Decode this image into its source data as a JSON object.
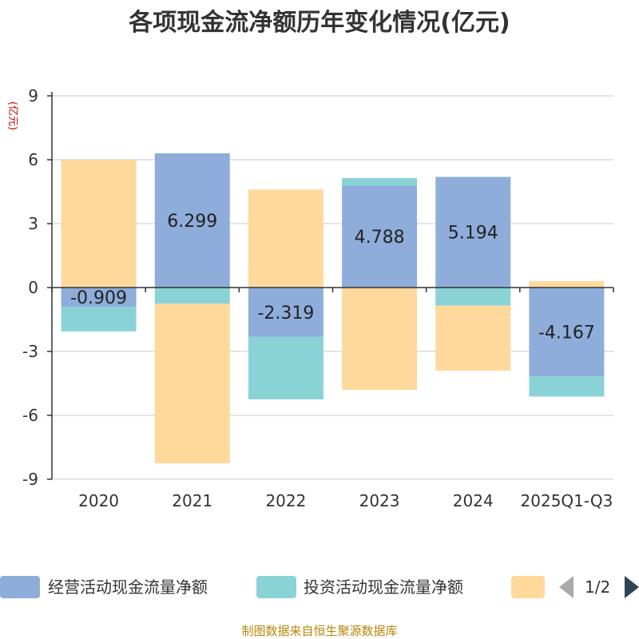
{
  "chart_data": {
    "type": "bar",
    "stacked": true,
    "title": "各项现金流净额历年变化情况(亿元)",
    "ylabel": "(亿元)",
    "xlabel": "",
    "categories": [
      "2020",
      "2021",
      "2022",
      "2023",
      "2024",
      "2025Q1-Q3"
    ],
    "yticks": [
      "9",
      "6",
      "3",
      "0",
      "-3",
      "-6",
      "-9"
    ],
    "ylim": [
      -9,
      9
    ],
    "series": [
      {
        "name": "经营活动现金流量净额",
        "color": "#8eadda",
        "values": [
          -0.909,
          6.299,
          -2.319,
          4.788,
          5.194,
          -4.167
        ]
      },
      {
        "name": "投资活动现金流量净额",
        "color": "#89d3d6",
        "values": [
          -1.15,
          -0.75,
          -2.93,
          0.35,
          -0.85,
          -0.95
        ]
      },
      {
        "name": "",
        "color": "#fed99b",
        "values": [
          6.0,
          -7.5,
          4.6,
          -4.8,
          -3.05,
          0.3
        ]
      }
    ],
    "data_labels": [
      "-0.909",
      "6.299",
      "-2.319",
      "4.788",
      "5.194",
      "-4.167"
    ],
    "grid": true,
    "legend": "bottom",
    "legend_page": "1/2",
    "source": "制图数据来自恒生聚源数据库"
  }
}
